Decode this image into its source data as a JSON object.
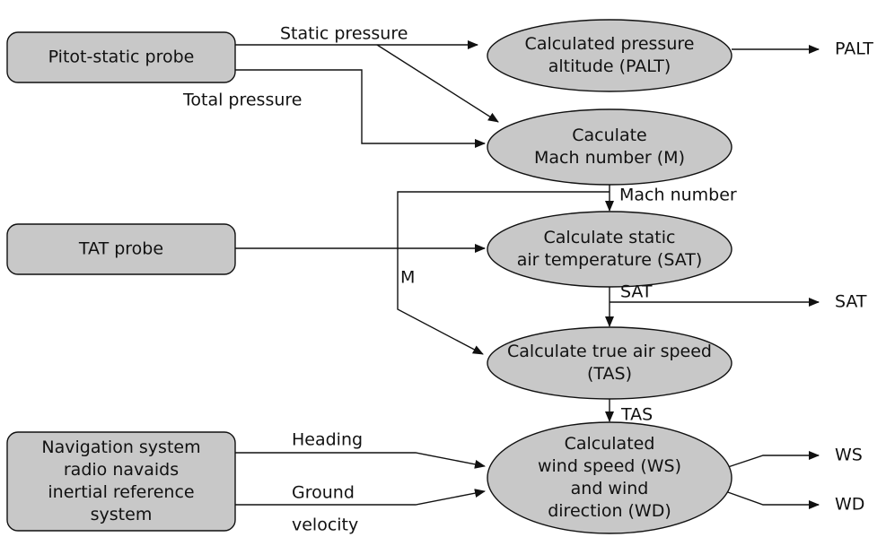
{
  "nodes": [
    {
      "shape": "box",
      "lines": [
        "Pitot-static probe"
      ]
    },
    {
      "shape": "box",
      "lines": [
        "TAT probe"
      ]
    },
    {
      "shape": "box",
      "lines": [
        "Navigation system",
        "radio navaids",
        "inertial reference",
        "system"
      ]
    },
    {
      "shape": "ellipse",
      "lines": [
        "Calculated pressure",
        "altitude (PALT)"
      ]
    },
    {
      "shape": "ellipse",
      "lines": [
        "Caculate",
        "Mach number (M)"
      ]
    },
    {
      "shape": "ellipse",
      "lines": [
        "Calculate static",
        "air temperature (SAT)"
      ]
    },
    {
      "shape": "ellipse",
      "lines": [
        "Calculate true air speed",
        "(TAS)"
      ]
    },
    {
      "shape": "ellipse",
      "lines": [
        "Calculated",
        "wind speed (WS)",
        "and wind",
        "direction (WD)"
      ]
    }
  ],
  "edge_labels": [
    "Static pressure",
    "Total pressure",
    "Mach number",
    "M",
    "SAT",
    "TAS",
    "Heading",
    "Ground",
    "velocity"
  ],
  "outputs": [
    "PALT",
    "SAT",
    "WS",
    "WD"
  ]
}
